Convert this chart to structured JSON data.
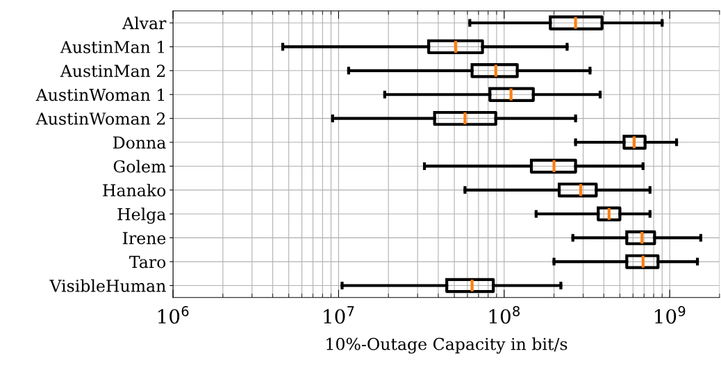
{
  "chart_data": {
    "type": "box",
    "orientation": "horizontal",
    "xlabel": "10%-Outage Capacity in bit/s",
    "log": "x",
    "grid": true,
    "xlim": [
      1000000,
      2000000000
    ],
    "xticks": [
      {
        "value": 1000000,
        "label": "10$^{6}$"
      },
      {
        "value": 10000000,
        "label": "10$^{7}$"
      },
      {
        "value": 100000000,
        "label": "10$^{8}$"
      },
      {
        "value": 1000000000,
        "label": "10$^{9}$"
      }
    ],
    "categories": [
      "Alvar",
      "AustinMan 1",
      "AustinMan 2",
      "AustinWoman 1",
      "AustinWoman 2",
      "Donna",
      "Golem",
      "Hanako",
      "Helga",
      "Irene",
      "Taro",
      "VisibleHuman"
    ],
    "series": [
      {
        "color": "#000000",
        "boxes": [
          {
            "low": 62000000,
            "q1": 190000000,
            "median": 270000000,
            "q3": 390000000,
            "high": 900000000
          },
          {
            "low": 4600000,
            "q1": 35000000,
            "median": 51000000,
            "q3": 74000000,
            "high": 240000000
          },
          {
            "low": 11500000,
            "q1": 64000000,
            "median": 89000000,
            "q3": 120000000,
            "high": 330000000
          },
          {
            "low": 19000000,
            "q1": 82000000,
            "median": 110000000,
            "q3": 150000000,
            "high": 380000000
          },
          {
            "low": 9200000,
            "q1": 38000000,
            "median": 58000000,
            "q3": 89000000,
            "high": 270000000
          },
          {
            "low": 270000000,
            "q1": 530000000,
            "median": 610000000,
            "q3": 710000000,
            "high": 1100000000
          },
          {
            "low": 33000000,
            "q1": 146000000,
            "median": 200000000,
            "q3": 270000000,
            "high": 690000000
          },
          {
            "low": 58000000,
            "q1": 215000000,
            "median": 290000000,
            "q3": 360000000,
            "high": 760000000
          },
          {
            "low": 156000000,
            "q1": 370000000,
            "median": 430000000,
            "q3": 500000000,
            "high": 760000000
          },
          {
            "low": 260000000,
            "q1": 550000000,
            "median": 680000000,
            "q3": 810000000,
            "high": 1540000000
          },
          {
            "low": 200000000,
            "q1": 550000000,
            "median": 690000000,
            "q3": 850000000,
            "high": 1470000000
          },
          {
            "low": 10500000,
            "q1": 45000000,
            "median": 64000000,
            "q3": 86000000,
            "high": 220000000
          }
        ]
      }
    ]
  }
}
